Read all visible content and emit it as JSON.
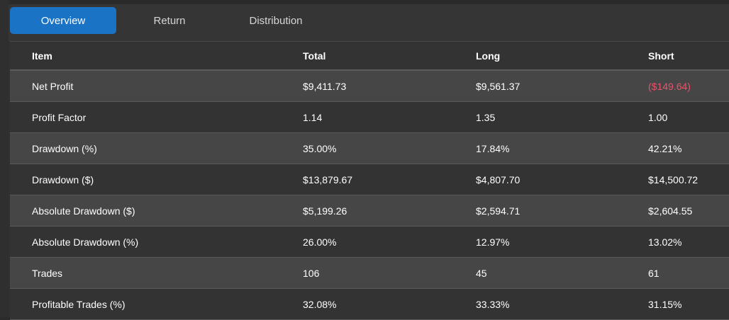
{
  "tabs": [
    {
      "label": "Overview",
      "active": true
    },
    {
      "label": "Return",
      "active": false
    },
    {
      "label": "Distribution",
      "active": false
    }
  ],
  "table": {
    "columns": [
      "Item",
      "Total",
      "Long",
      "Short"
    ],
    "rows": [
      [
        "Net Profit",
        "$9,411.73",
        "$9,561.37",
        "($149.64)"
      ],
      [
        "Profit Factor",
        "1.14",
        "1.35",
        "1.00"
      ],
      [
        "Drawdown (%)",
        "35.00%",
        "17.84%",
        "42.21%"
      ],
      [
        "Drawdown ($)",
        "$13,879.67",
        "$4,807.70",
        "$14,500.72"
      ],
      [
        "Absolute Drawdown ($)",
        "$5,199.26",
        "$2,594.71",
        "$2,604.55"
      ],
      [
        "Absolute Drawdown (%)",
        "26.00%",
        "12.97%",
        "13.02%"
      ],
      [
        "Trades",
        "106",
        "45",
        "61"
      ],
      [
        "Profitable Trades (%)",
        "32.08%",
        "33.33%",
        "31.15%"
      ]
    ]
  },
  "colors": {
    "accent": "#1a73c4",
    "negative": "#e8526a"
  }
}
